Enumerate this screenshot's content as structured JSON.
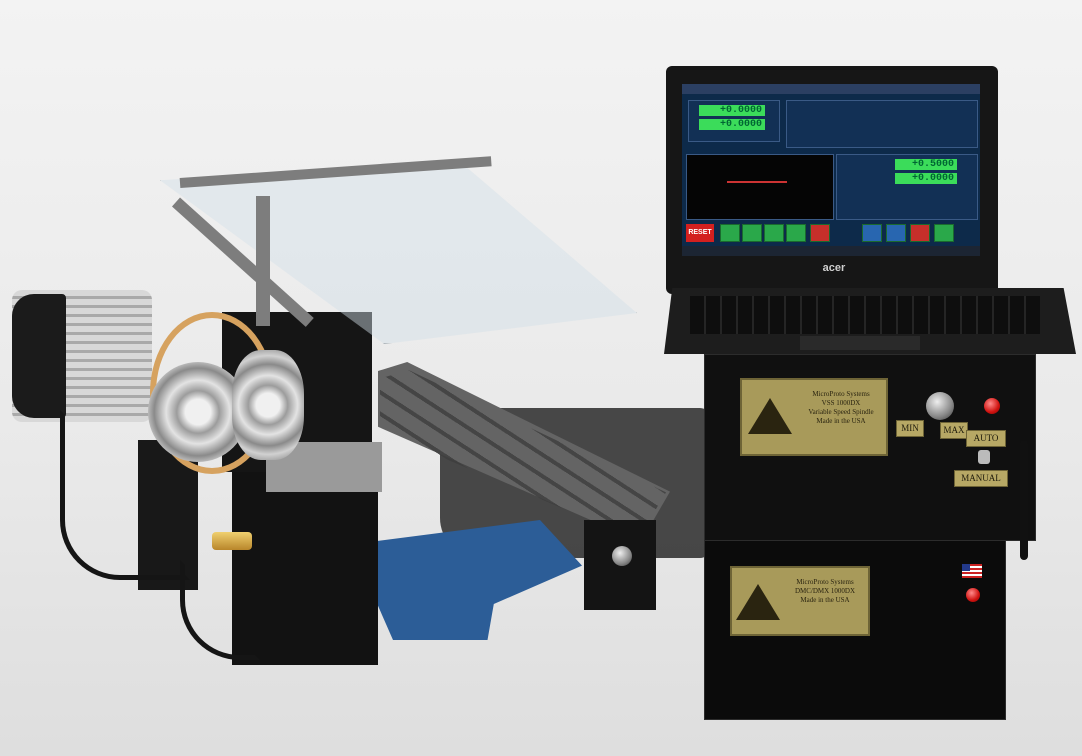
{
  "laptop": {
    "brand": "acer",
    "screen": {
      "dro_top": [
        "+0.0000",
        "+0.0000"
      ],
      "dro_right": [
        "+0.5000",
        "+0.0000"
      ],
      "reset_label": "RESET"
    }
  },
  "controller_top": {
    "plaque_lines": [
      "MicroProto Systems",
      "VSS 1000DX",
      "Variable Speed Spindle",
      "Made in the USA"
    ],
    "labels": {
      "min": "MIN",
      "max": "MAX",
      "auto": "AUTO",
      "manual": "MANUAL"
    }
  },
  "controller_bottom": {
    "plaque_lines": [
      "MicroProto Systems",
      "DMC/DMX 1000DX",
      "Made in the USA"
    ]
  },
  "colors": {
    "plaque": "#a89a5a",
    "table_base": "#2c5d97",
    "led": "#d0120f",
    "dro_green": "#3bdc5a"
  }
}
